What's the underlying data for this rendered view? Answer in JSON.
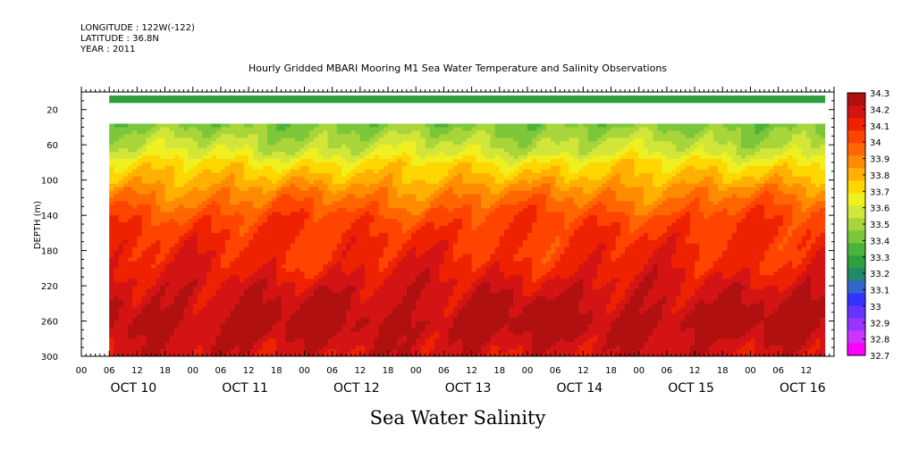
{
  "header": {
    "longitude": "LONGITUDE : 122W(-122)",
    "latitude": "LATITUDE : 36.8N",
    "year": "YEAR : 2011"
  },
  "chart_data": {
    "type": "heatmap",
    "title": "Hourly Gridded MBARI Mooring M1 Sea Water Temperature and Salinity Observations",
    "variable_title": "Sea Water Salinity",
    "ylabel": "DEPTH (m)",
    "ylim": [
      300,
      0
    ],
    "y_ticks": [
      20,
      60,
      100,
      140,
      180,
      220,
      260,
      300
    ],
    "x_range_hours": [
      0,
      162
    ],
    "x_hour_labels": [
      "00",
      "06",
      "12",
      "18",
      "00",
      "06",
      "12",
      "18",
      "00",
      "06",
      "12",
      "18",
      "00",
      "06",
      "12",
      "18",
      "00",
      "06",
      "12",
      "18",
      "00",
      "06",
      "12",
      "18",
      "00",
      "06",
      "12"
    ],
    "dates": [
      "OCT 10",
      "OCT 11",
      "OCT 12",
      "OCT 13",
      "OCT 14",
      "OCT 15",
      "OCT 16"
    ],
    "data_start_hour": 6,
    "data_end_hour": 160,
    "depths": [
      10,
      40,
      50,
      60,
      70,
      80,
      90,
      100,
      110,
      120,
      130,
      140,
      150,
      160,
      170,
      180,
      190,
      200,
      210,
      220,
      230,
      240,
      250,
      260,
      270,
      280,
      290,
      300
    ],
    "salinity_profile": [
      33.25,
      33.45,
      33.5,
      33.55,
      33.6,
      33.7,
      33.75,
      33.8,
      33.87,
      33.92,
      33.97,
      34.02,
      34.05,
      34.07,
      34.08,
      34.09,
      34.1,
      34.12,
      34.15,
      34.18,
      34.2,
      34.22,
      34.24,
      34.26,
      34.25,
      34.22,
      34.2,
      34.18
    ],
    "gap_depths_m": [
      16,
      36
    ],
    "colorbar": {
      "min": 32.7,
      "max": 34.3,
      "labels": [
        "34.3",
        "34.2",
        "34.1",
        "34",
        "33.9",
        "33.8",
        "33.7",
        "33.6",
        "33.5",
        "33.4",
        "33.3",
        "33.2",
        "33.1",
        "33",
        "32.9",
        "32.8",
        "32.7"
      ],
      "colors": [
        "#ff00ff",
        "#cc33ff",
        "#9933ff",
        "#6633ff",
        "#3333ff",
        "#3366cc",
        "#218868",
        "#2e9e3e",
        "#4cb33a",
        "#7cc63a",
        "#a8d63a",
        "#d2e63a",
        "#f0f020",
        "#ffd700",
        "#ffb000",
        "#ff8c00",
        "#ff6600",
        "#ff4400",
        "#ee2200",
        "#d41414",
        "#b01010"
      ]
    }
  }
}
